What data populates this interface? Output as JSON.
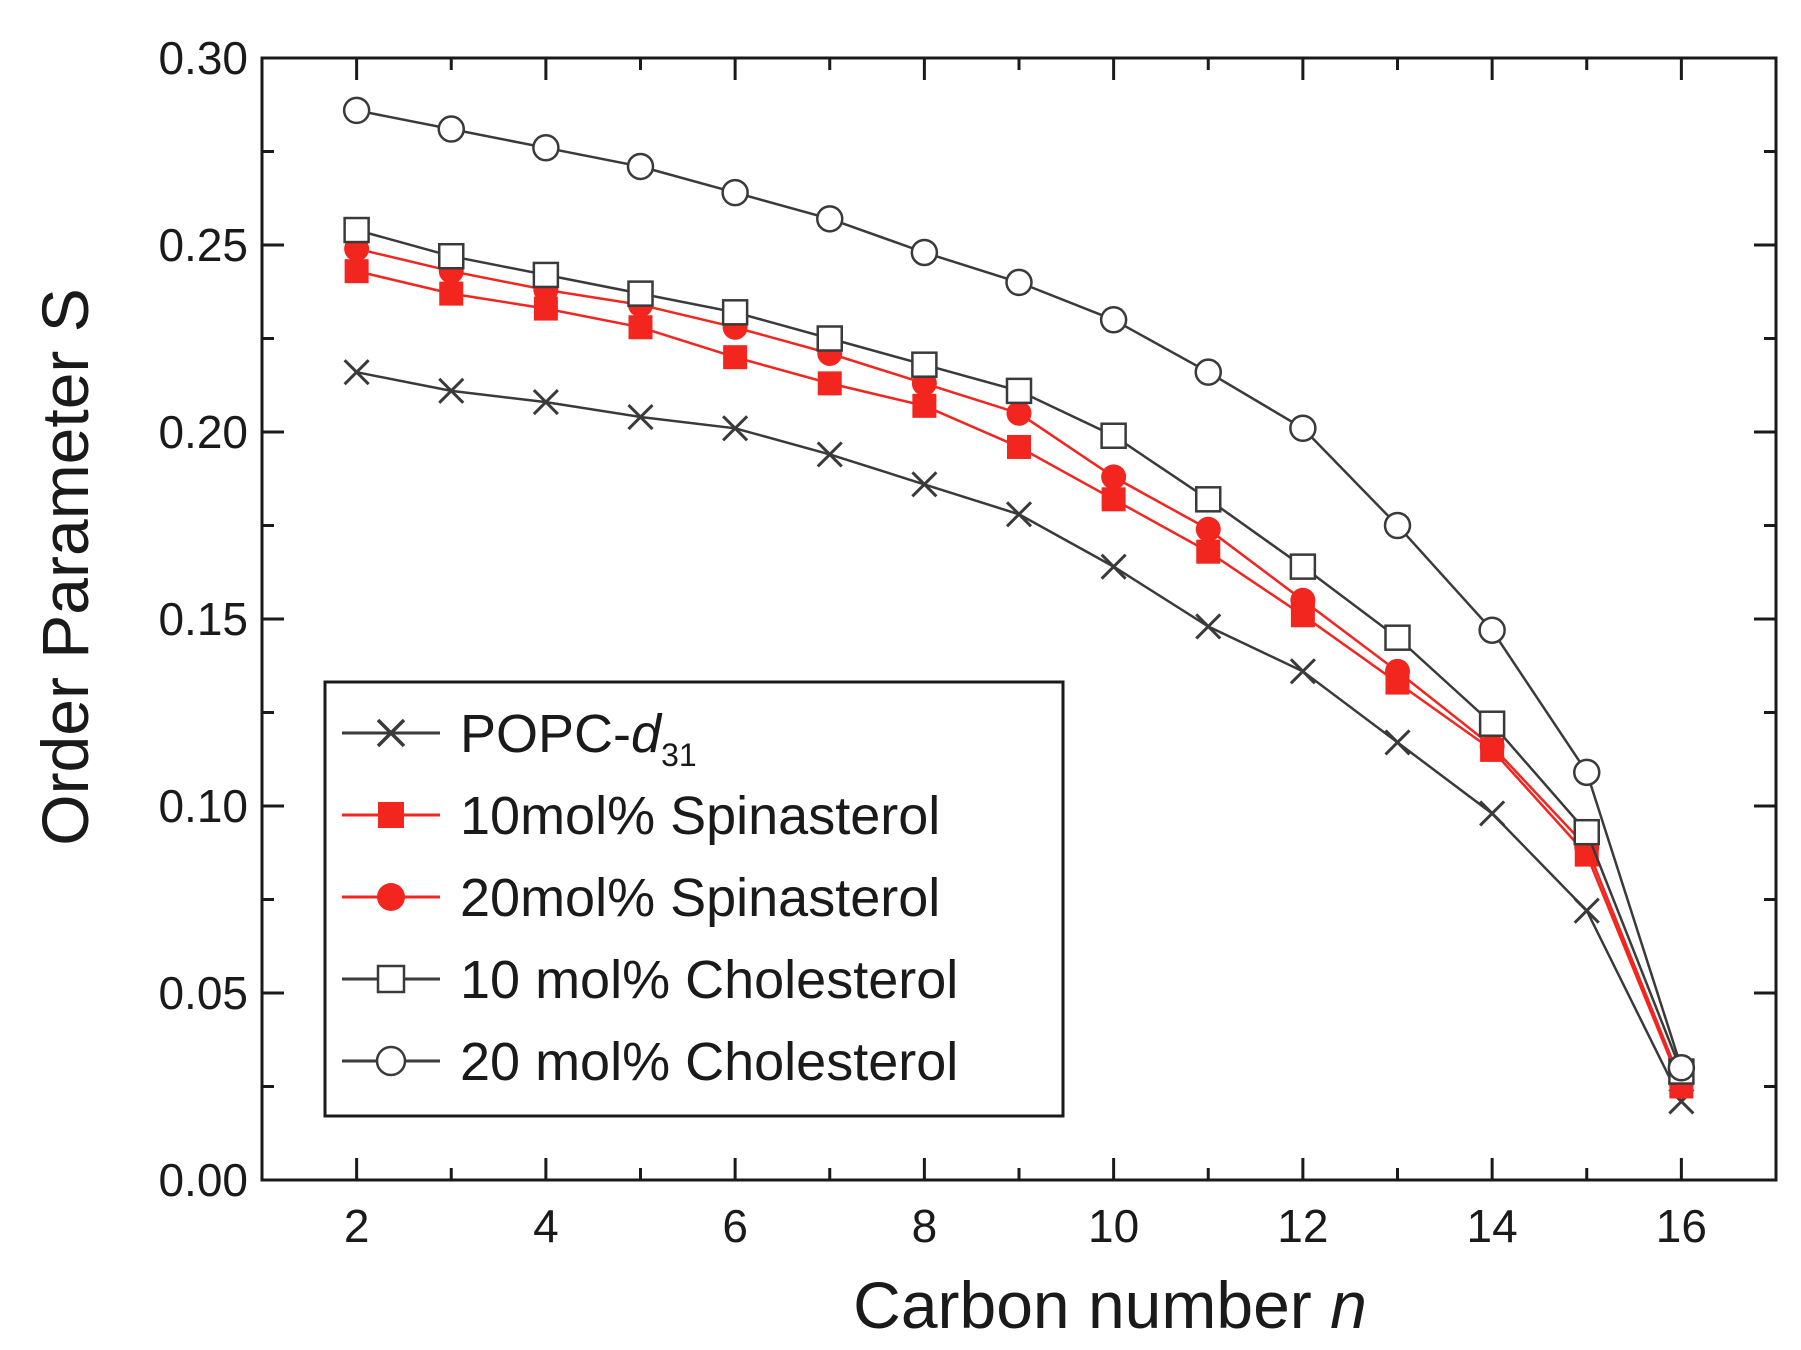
{
  "chart_data": {
    "type": "line",
    "xlabel": "Carbon number",
    "xlabel_var": "n",
    "ylabel": "Order Parameter",
    "ylabel_var": "S",
    "xlim": [
      1,
      17
    ],
    "ylim": [
      0.0,
      0.3
    ],
    "xticks": [
      2,
      4,
      6,
      8,
      10,
      12,
      14,
      16
    ],
    "xtick_labels": [
      "2",
      "4",
      "6",
      "8",
      "10",
      "12",
      "14",
      "16"
    ],
    "yticks": [
      0.0,
      0.05,
      0.1,
      0.15,
      0.2,
      0.25,
      0.3
    ],
    "ytick_labels": [
      "0.00",
      "0.05",
      "0.10",
      "0.15",
      "0.20",
      "0.25",
      "0.30"
    ],
    "grid": false,
    "legend_position": "lower-left",
    "x": [
      2,
      3,
      4,
      5,
      6,
      7,
      8,
      9,
      10,
      11,
      12,
      13,
      14,
      15,
      16
    ],
    "series": [
      {
        "name": "POPC-",
        "name_italic": "d",
        "name_sub": "31",
        "marker": "x",
        "color": "#3a3a3a",
        "values": [
          0.216,
          0.211,
          0.208,
          0.204,
          0.201,
          0.194,
          0.186,
          0.178,
          0.164,
          0.148,
          0.136,
          0.117,
          0.098,
          0.072,
          0.021
        ]
      },
      {
        "name": "10mol% Spinasterol",
        "marker": "filled-square",
        "color": "#f2251f",
        "values": [
          0.243,
          0.237,
          0.233,
          0.228,
          0.22,
          0.213,
          0.207,
          0.196,
          0.182,
          0.168,
          0.151,
          0.133,
          0.115,
          0.087,
          0.025
        ]
      },
      {
        "name": "20mol% Spinasterol",
        "marker": "filled-circle",
        "color": "#f2251f",
        "values": [
          0.249,
          0.243,
          0.238,
          0.234,
          0.228,
          0.221,
          0.213,
          0.205,
          0.188,
          0.174,
          0.155,
          0.136,
          0.116,
          0.089,
          0.026
        ]
      },
      {
        "name": "10 mol% Cholesterol",
        "marker": "open-square",
        "color": "#3a3a3a",
        "values": [
          0.254,
          0.247,
          0.242,
          0.237,
          0.232,
          0.225,
          0.218,
          0.211,
          0.199,
          0.182,
          0.164,
          0.145,
          0.122,
          0.093,
          0.029
        ]
      },
      {
        "name": "20 mol% Cholesterol",
        "marker": "open-circle",
        "color": "#3a3a3a",
        "values": [
          0.286,
          0.281,
          0.276,
          0.271,
          0.264,
          0.257,
          0.248,
          0.24,
          0.23,
          0.216,
          0.201,
          0.175,
          0.147,
          0.109,
          0.03
        ]
      }
    ]
  }
}
